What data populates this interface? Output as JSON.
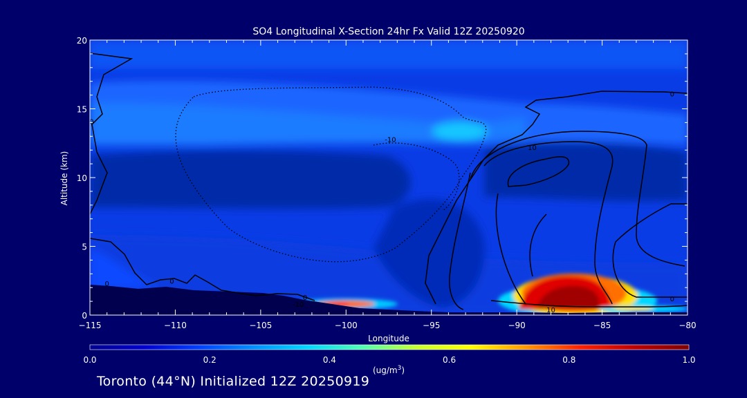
{
  "chart_data": {
    "type": "heatmap",
    "title": "SO4 Longitudinal X-Section 24hr  Fx Valid 12Z 20250920",
    "xlabel": "Longitude",
    "ylabel": "Altitude (km)",
    "xlim": [
      -115,
      -80
    ],
    "ylim": [
      0,
      20
    ],
    "x_ticks": [
      -115,
      -110,
      -105,
      -100,
      -95,
      -90,
      -85,
      -80
    ],
    "y_ticks": [
      0,
      5,
      10,
      15,
      20
    ],
    "x_tick_labels": [
      "−115",
      "−110",
      "−105",
      "−100",
      "−95",
      "−90",
      "−85",
      "−80"
    ],
    "y_tick_labels": [
      "0",
      "5",
      "10",
      "15",
      "20"
    ],
    "colorbar": {
      "min": 0.0,
      "max": 1.0,
      "ticks": [
        0.0,
        0.2,
        0.4,
        0.6,
        0.8,
        1.0
      ],
      "tick_labels": [
        "0.0",
        "0.2",
        "0.4",
        "0.6",
        "0.8",
        "1.0"
      ],
      "units_prefix": "(ug/m",
      "units_sup": "3",
      "units_suffix": ")",
      "colors": [
        "#000090",
        "#0000d0",
        "#0040ff",
        "#0090ff",
        "#00d8ff",
        "#50ffb0",
        "#c8ff30",
        "#ffff00",
        "#ff9800",
        "#ff2000",
        "#c00000",
        "#800000"
      ]
    },
    "contour_labels": [
      {
        "text": "0",
        "lon": -114.9,
        "alt": 14.1
      },
      {
        "text": "0",
        "lon": -114.0,
        "alt": 2.3
      },
      {
        "text": "0",
        "lon": -110.2,
        "alt": 2.5
      },
      {
        "text": "0",
        "lon": -102.4,
        "alt": 1.3
      },
      {
        "text": "-10",
        "lon": -102.8,
        "alt": 0.8
      },
      {
        "text": "-10",
        "lon": -97.4,
        "alt": 12.8
      },
      {
        "text": "10",
        "lon": -89.1,
        "alt": 12.2
      },
      {
        "text": "0",
        "lon": -80.9,
        "alt": 16.1
      },
      {
        "text": "10",
        "lon": -88.0,
        "alt": 0.4
      },
      {
        "text": "0",
        "lon": -80.9,
        "alt": 1.2
      }
    ]
  },
  "footer": {
    "text": "Toronto (44°N) Initialized 12Z 20250919"
  }
}
